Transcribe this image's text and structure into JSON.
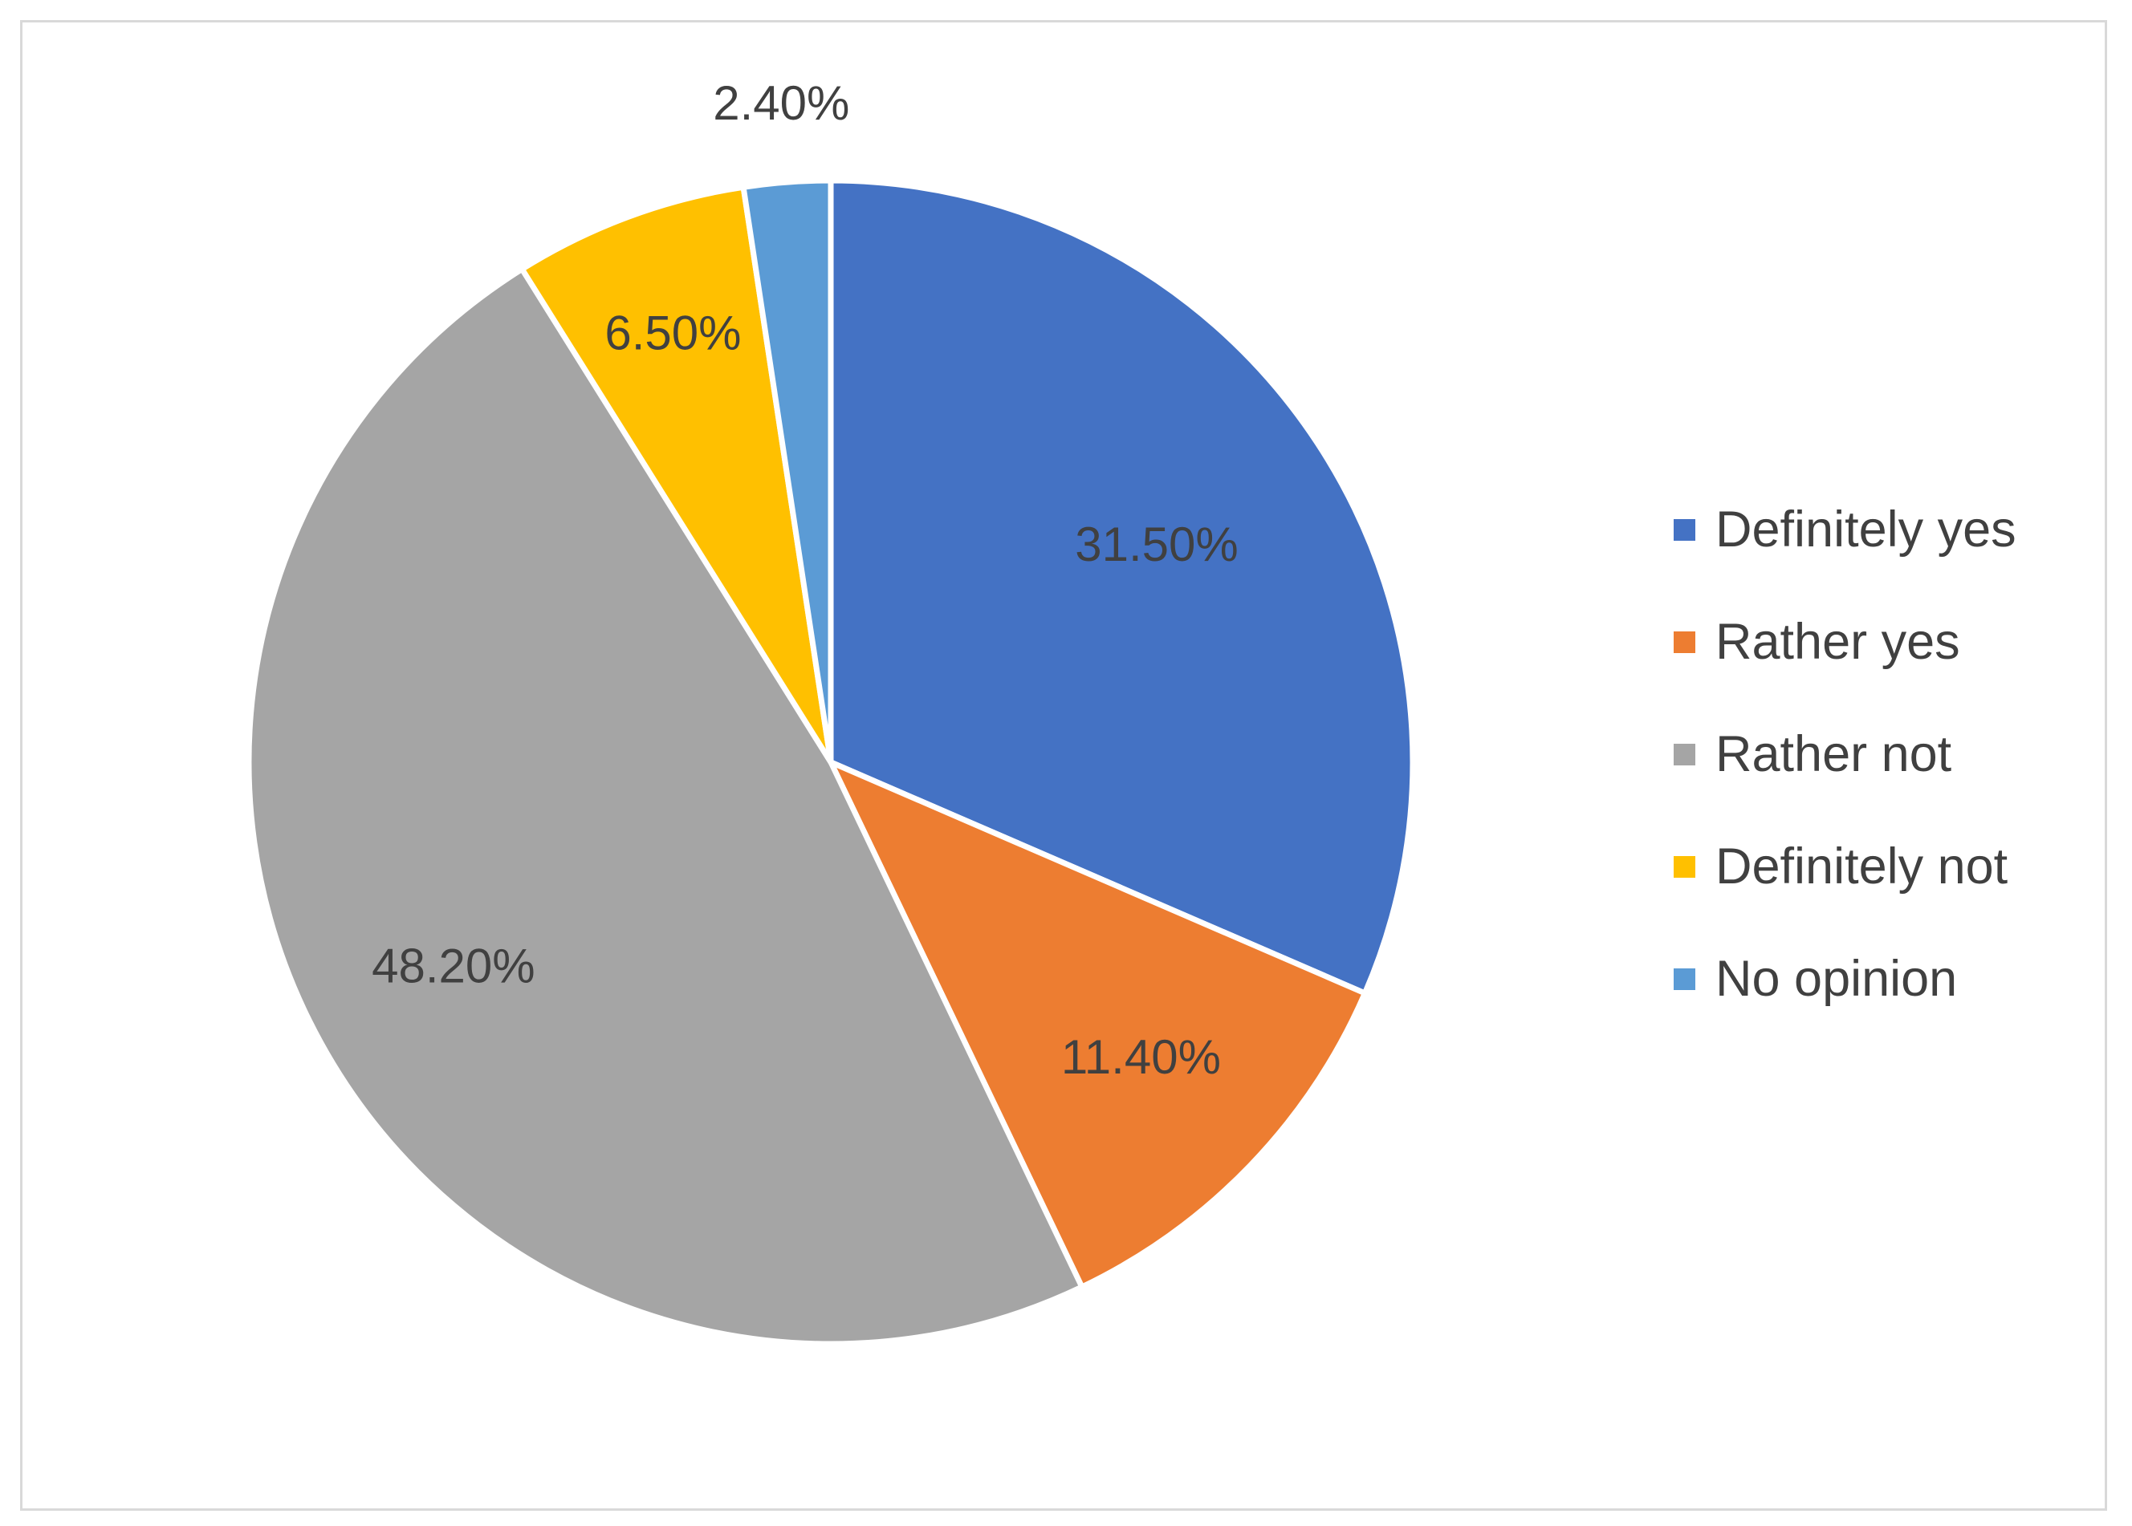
{
  "chart_data": {
    "type": "pie",
    "title": "",
    "categories": [
      "Definitely yes",
      "Rather yes",
      "Rather not",
      "Definitely not",
      "No opinion"
    ],
    "values": [
      31.5,
      11.4,
      48.2,
      6.5,
      2.4
    ],
    "data_labels": [
      "31.50%",
      "11.40%",
      "48.20%",
      "6.50%",
      "2.40%"
    ],
    "colors": [
      "#4472C4",
      "#ED7D31",
      "#A5A5A5",
      "#FFC000",
      "#5B9BD5"
    ],
    "start_angle": "12 o'clock",
    "direction": "clockwise",
    "legend_position": "right"
  }
}
